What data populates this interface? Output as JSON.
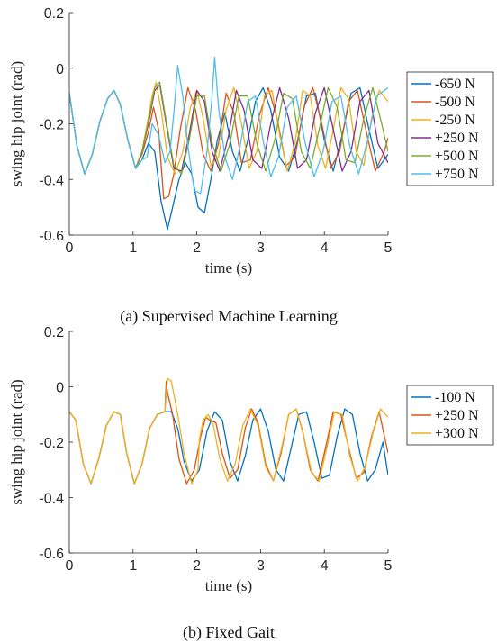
{
  "figure": {
    "caption_a": "(a) Supervised Machine Learning",
    "caption_b": "(b) Fixed Gait"
  },
  "chart_data": [
    {
      "type": "line",
      "title": "",
      "xlabel": "time (s)",
      "ylabel": "swing hip joint (rad)",
      "xlim": [
        0,
        5
      ],
      "ylim": [
        -0.6,
        0.2
      ],
      "xticks": [
        0,
        1,
        2,
        3,
        4,
        5
      ],
      "yticks": [
        0.2,
        0,
        -0.2,
        -0.4,
        -0.6
      ],
      "x_tick_labels": [
        "0",
        "1",
        "2",
        "3",
        "4",
        "5"
      ],
      "y_tick_labels": [
        "0.2",
        "0",
        "-0.2",
        "-0.4",
        "-0.6"
      ],
      "grid": false,
      "legend_position": "outside-right",
      "caption": "(a) Supervised Machine Learning",
      "series": [
        {
          "name": "-650 N",
          "color": "#0072BD",
          "x": [
            0,
            0.12,
            0.24,
            0.36,
            0.48,
            0.6,
            0.7,
            0.8,
            0.92,
            1.04,
            1.14,
            1.24,
            1.34,
            1.44,
            1.54,
            1.62,
            1.72,
            1.82,
            1.92,
            2.02,
            2.12,
            2.22,
            2.32,
            2.44,
            2.56,
            2.68,
            2.8,
            2.92,
            3.04,
            3.16,
            3.3,
            3.44,
            3.58,
            3.72,
            3.86,
            4.0,
            4.14,
            4.28,
            4.42,
            4.56,
            4.7,
            4.84,
            5.0
          ],
          "y": [
            -0.09,
            -0.28,
            -0.38,
            -0.31,
            -0.19,
            -0.11,
            -0.08,
            -0.13,
            -0.26,
            -0.36,
            -0.33,
            -0.27,
            -0.3,
            -0.48,
            -0.58,
            -0.5,
            -0.4,
            -0.34,
            -0.38,
            -0.5,
            -0.52,
            -0.4,
            -0.26,
            -0.16,
            -0.3,
            -0.37,
            -0.26,
            -0.12,
            -0.07,
            -0.15,
            -0.32,
            -0.37,
            -0.26,
            -0.1,
            -0.09,
            -0.26,
            -0.37,
            -0.24,
            -0.09,
            -0.07,
            -0.22,
            -0.36,
            -0.31
          ]
        },
        {
          "name": "-500 N",
          "color": "#D95319",
          "x": [
            0,
            0.12,
            0.24,
            0.36,
            0.48,
            0.6,
            0.7,
            0.8,
            0.92,
            1.04,
            1.14,
            1.24,
            1.32,
            1.4,
            1.48,
            1.56,
            1.64,
            1.74,
            1.86,
            1.98,
            2.1,
            2.22,
            2.34,
            2.46,
            2.58,
            2.7,
            2.84,
            2.98,
            3.12,
            3.26,
            3.4,
            3.54,
            3.68,
            3.82,
            3.96,
            4.1,
            4.24,
            4.38,
            4.52,
            4.66,
            4.8,
            4.94,
            5.0
          ],
          "y": [
            -0.09,
            -0.28,
            -0.38,
            -0.31,
            -0.19,
            -0.11,
            -0.08,
            -0.13,
            -0.26,
            -0.36,
            -0.31,
            -0.23,
            -0.14,
            -0.22,
            -0.47,
            -0.46,
            -0.38,
            -0.22,
            -0.07,
            -0.15,
            -0.31,
            -0.37,
            -0.27,
            -0.09,
            -0.16,
            -0.34,
            -0.33,
            -0.17,
            -0.07,
            -0.18,
            -0.35,
            -0.32,
            -0.14,
            -0.07,
            -0.2,
            -0.36,
            -0.3,
            -0.12,
            -0.08,
            -0.23,
            -0.37,
            -0.3,
            -0.25
          ]
        },
        {
          "name": "-250 N",
          "color": "#EDB120",
          "x": [
            0,
            0.12,
            0.24,
            0.36,
            0.48,
            0.6,
            0.7,
            0.8,
            0.92,
            1.04,
            1.14,
            1.22,
            1.3,
            1.36,
            1.44,
            1.54,
            1.66,
            1.78,
            1.9,
            2.0,
            2.1,
            2.22,
            2.34,
            2.46,
            2.58,
            2.7,
            2.82,
            2.94,
            3.06,
            3.18,
            3.3,
            3.42,
            3.54,
            3.66,
            3.78,
            3.9,
            4.02,
            4.14,
            4.26,
            4.38,
            4.5,
            4.62,
            4.74,
            4.86,
            5.0
          ],
          "y": [
            -0.09,
            -0.28,
            -0.38,
            -0.31,
            -0.19,
            -0.11,
            -0.08,
            -0.13,
            -0.26,
            -0.36,
            -0.3,
            -0.2,
            -0.1,
            -0.05,
            -0.15,
            -0.32,
            -0.38,
            -0.3,
            -0.14,
            -0.08,
            -0.18,
            -0.35,
            -0.32,
            -0.15,
            -0.07,
            -0.2,
            -0.36,
            -0.3,
            -0.1,
            -0.08,
            -0.24,
            -0.37,
            -0.27,
            -0.08,
            -0.1,
            -0.28,
            -0.36,
            -0.22,
            -0.07,
            -0.11,
            -0.3,
            -0.35,
            -0.18,
            -0.08,
            -0.12
          ]
        },
        {
          "name": "+250 N",
          "color": "#7E2F8E",
          "x": [
            0,
            0.12,
            0.24,
            0.36,
            0.48,
            0.6,
            0.7,
            0.8,
            0.92,
            1.04,
            1.14,
            1.24,
            1.34,
            1.42,
            1.52,
            1.64,
            1.76,
            1.88,
            2.0,
            2.12,
            2.24,
            2.36,
            2.5,
            2.62,
            2.74,
            2.88,
            3.02,
            3.16,
            3.3,
            3.44,
            3.58,
            3.72,
            3.86,
            4.0,
            4.14,
            4.28,
            4.42,
            4.56,
            4.7,
            4.84,
            5.0
          ],
          "y": [
            -0.09,
            -0.28,
            -0.38,
            -0.31,
            -0.19,
            -0.11,
            -0.08,
            -0.13,
            -0.26,
            -0.36,
            -0.3,
            -0.2,
            -0.08,
            -0.06,
            -0.2,
            -0.36,
            -0.37,
            -0.24,
            -0.08,
            -0.12,
            -0.3,
            -0.37,
            -0.24,
            -0.08,
            -0.15,
            -0.33,
            -0.36,
            -0.2,
            -0.07,
            -0.18,
            -0.36,
            -0.33,
            -0.16,
            -0.07,
            -0.22,
            -0.37,
            -0.3,
            -0.12,
            -0.08,
            -0.27,
            -0.34
          ]
        },
        {
          "name": "+500 N",
          "color": "#77AC30",
          "x": [
            0,
            0.12,
            0.24,
            0.36,
            0.48,
            0.6,
            0.7,
            0.8,
            0.92,
            1.04,
            1.14,
            1.24,
            1.34,
            1.42,
            1.52,
            1.64,
            1.76,
            1.88,
            2.0,
            2.12,
            2.24,
            2.38,
            2.52,
            2.66,
            2.8,
            2.94,
            3.08,
            3.22,
            3.36,
            3.5,
            3.64,
            3.78,
            3.92,
            4.06,
            4.2,
            4.34,
            4.48,
            4.62,
            4.76,
            4.9,
            5.0
          ],
          "y": [
            -0.09,
            -0.28,
            -0.38,
            -0.31,
            -0.19,
            -0.11,
            -0.08,
            -0.13,
            -0.26,
            -0.36,
            -0.3,
            -0.19,
            -0.07,
            -0.05,
            -0.19,
            -0.35,
            -0.38,
            -0.26,
            -0.1,
            -0.1,
            -0.27,
            -0.37,
            -0.27,
            -0.1,
            -0.1,
            -0.27,
            -0.37,
            -0.26,
            -0.09,
            -0.11,
            -0.3,
            -0.36,
            -0.22,
            -0.07,
            -0.14,
            -0.33,
            -0.34,
            -0.18,
            -0.07,
            -0.2,
            -0.3
          ]
        },
        {
          "name": "+750 N",
          "color": "#4DBEEE",
          "x": [
            0,
            0.12,
            0.24,
            0.36,
            0.48,
            0.6,
            0.7,
            0.8,
            0.92,
            1.04,
            1.14,
            1.22,
            1.3,
            1.4,
            1.5,
            1.58,
            1.64,
            1.7,
            1.78,
            1.86,
            1.96,
            2.06,
            2.16,
            2.24,
            2.28,
            2.34,
            2.44,
            2.56,
            2.68,
            2.8,
            2.92,
            3.04,
            3.16,
            3.28,
            3.42,
            3.56,
            3.7,
            3.84,
            3.98,
            4.12,
            4.26,
            4.4,
            4.54,
            4.68,
            4.82,
            5.0
          ],
          "y": [
            -0.09,
            -0.28,
            -0.38,
            -0.31,
            -0.19,
            -0.11,
            -0.08,
            -0.13,
            -0.26,
            -0.36,
            -0.33,
            -0.32,
            -0.2,
            -0.24,
            -0.34,
            -0.3,
            -0.16,
            0.01,
            -0.1,
            -0.28,
            -0.44,
            -0.45,
            -0.3,
            -0.1,
            0.04,
            -0.14,
            -0.32,
            -0.4,
            -0.28,
            -0.12,
            -0.1,
            -0.26,
            -0.39,
            -0.32,
            -0.14,
            -0.1,
            -0.27,
            -0.39,
            -0.3,
            -0.12,
            -0.1,
            -0.28,
            -0.38,
            -0.26,
            -0.1,
            -0.07
          ]
        }
      ]
    },
    {
      "type": "line",
      "title": "",
      "xlabel": "time (s)",
      "ylabel": "swing hip joint (rad)",
      "xlim": [
        0,
        5
      ],
      "ylim": [
        -0.6,
        0.2
      ],
      "xticks": [
        0,
        1,
        2,
        3,
        4,
        5
      ],
      "yticks": [
        0.2,
        0,
        -0.2,
        -0.4,
        -0.6
      ],
      "x_tick_labels": [
        "0",
        "1",
        "2",
        "3",
        "4",
        "5"
      ],
      "y_tick_labels": [
        "0.2",
        "0",
        "-0.2",
        "-0.4",
        "-0.6"
      ],
      "grid": false,
      "legend_position": "outside-right",
      "caption": "(b) Fixed Gait",
      "series": [
        {
          "name": "-100 N",
          "color": "#0072BD",
          "x": [
            0,
            0.1,
            0.22,
            0.34,
            0.46,
            0.58,
            0.7,
            0.8,
            0.9,
            1.02,
            1.14,
            1.26,
            1.38,
            1.5,
            1.6,
            1.7,
            1.8,
            1.92,
            2.04,
            2.16,
            2.28,
            2.4,
            2.52,
            2.64,
            2.76,
            2.88,
            3.0,
            3.12,
            3.24,
            3.36,
            3.48,
            3.6,
            3.72,
            3.84,
            3.96,
            4.08,
            4.2,
            4.32,
            4.44,
            4.56,
            4.68,
            4.8,
            4.92,
            5.0
          ],
          "y": [
            -0.09,
            -0.12,
            -0.28,
            -0.35,
            -0.26,
            -0.14,
            -0.09,
            -0.1,
            -0.24,
            -0.35,
            -0.28,
            -0.15,
            -0.1,
            -0.09,
            -0.09,
            -0.15,
            -0.27,
            -0.34,
            -0.3,
            -0.16,
            -0.09,
            -0.12,
            -0.27,
            -0.34,
            -0.25,
            -0.12,
            -0.08,
            -0.16,
            -0.3,
            -0.34,
            -0.22,
            -0.1,
            -0.09,
            -0.2,
            -0.33,
            -0.32,
            -0.18,
            -0.08,
            -0.1,
            -0.24,
            -0.34,
            -0.3,
            -0.2,
            -0.32
          ]
        },
        {
          "name": "+250 N",
          "color": "#D95319",
          "x": [
            0,
            0.1,
            0.22,
            0.34,
            0.46,
            0.58,
            0.7,
            0.8,
            0.9,
            1.02,
            1.14,
            1.26,
            1.38,
            1.5,
            1.52,
            1.54,
            1.62,
            1.72,
            1.84,
            1.96,
            2.06,
            2.14,
            2.2,
            2.3,
            2.4,
            2.52,
            2.64,
            2.76,
            2.86,
            2.96,
            3.08,
            3.2,
            3.32,
            3.44,
            3.56,
            3.66,
            3.78,
            3.9,
            4.02,
            4.14,
            4.26,
            4.38,
            4.5,
            4.62,
            4.74,
            4.86,
            5.0
          ],
          "y": [
            -0.09,
            -0.12,
            -0.28,
            -0.35,
            -0.26,
            -0.14,
            -0.09,
            -0.1,
            -0.24,
            -0.35,
            -0.28,
            -0.15,
            -0.1,
            -0.09,
            0.02,
            -0.02,
            -0.1,
            -0.26,
            -0.35,
            -0.3,
            -0.18,
            -0.11,
            -0.12,
            -0.13,
            -0.24,
            -0.33,
            -0.3,
            -0.15,
            -0.08,
            -0.13,
            -0.28,
            -0.34,
            -0.24,
            -0.1,
            -0.08,
            -0.16,
            -0.3,
            -0.34,
            -0.22,
            -0.09,
            -0.1,
            -0.22,
            -0.33,
            -0.31,
            -0.18,
            -0.09,
            -0.24
          ]
        },
        {
          "name": "+300 N",
          "color": "#EDB120",
          "x": [
            0,
            0.1,
            0.22,
            0.34,
            0.46,
            0.58,
            0.7,
            0.8,
            0.9,
            1.02,
            1.14,
            1.26,
            1.38,
            1.5,
            1.54,
            1.6,
            1.7,
            1.8,
            1.92,
            2.02,
            2.04,
            2.1,
            2.18,
            2.26,
            2.36,
            2.48,
            2.6,
            2.72,
            2.84,
            2.96,
            3.08,
            3.2,
            3.32,
            3.44,
            3.56,
            3.68,
            3.8,
            3.92,
            4.04,
            4.16,
            4.28,
            4.4,
            4.52,
            4.64,
            4.76,
            4.88,
            5.0
          ],
          "y": [
            -0.09,
            -0.12,
            -0.28,
            -0.35,
            -0.26,
            -0.14,
            -0.09,
            -0.1,
            -0.24,
            -0.35,
            -0.28,
            -0.15,
            -0.1,
            -0.09,
            0.03,
            0.02,
            -0.1,
            -0.24,
            -0.35,
            -0.3,
            -0.19,
            -0.12,
            -0.1,
            -0.14,
            -0.26,
            -0.34,
            -0.28,
            -0.14,
            -0.08,
            -0.14,
            -0.29,
            -0.34,
            -0.23,
            -0.1,
            -0.08,
            -0.18,
            -0.31,
            -0.34,
            -0.22,
            -0.09,
            -0.1,
            -0.25,
            -0.34,
            -0.29,
            -0.17,
            -0.08,
            -0.11
          ]
        }
      ]
    }
  ]
}
